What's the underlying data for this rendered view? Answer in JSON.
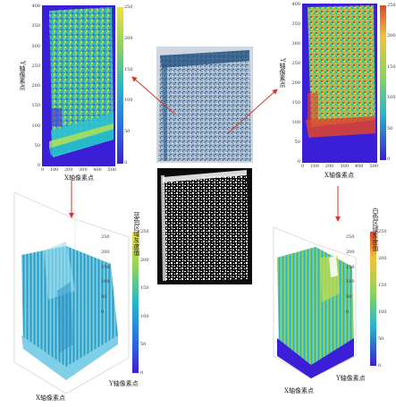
{
  "top_left_map": {
    "ylabel": "Y轴像素点",
    "xlabel": "X轴像素点",
    "x_ticks": [
      "0",
      "100",
      "200",
      "300",
      "400",
      "500"
    ],
    "y_ticks": [
      "400",
      "350",
      "300",
      "250",
      "200",
      "150",
      "100",
      "50",
      "0"
    ],
    "cbar_ticks": [
      "250",
      "200",
      "150",
      "100",
      "50",
      "0"
    ]
  },
  "top_right_map": {
    "ylabel": "Y轴像素点",
    "xlabel": "X轴像素点",
    "x_ticks": [
      "0",
      "100",
      "200",
      "300",
      "400",
      "500"
    ],
    "y_ticks": [
      "400",
      "350",
      "300",
      "250",
      "200",
      "150",
      "100",
      "50",
      "0"
    ],
    "cbar_ticks": [
      "250",
      "200",
      "150",
      "100",
      "50",
      "0"
    ]
  },
  "bottom_left_3d": {
    "title": "蓝色区域灰度值",
    "xlabel": "X轴像素点",
    "ylabel": "Y轴像素点",
    "z_ticks": [
      "250",
      "200",
      "150",
      "100",
      "50",
      "0"
    ],
    "cbar_ticks": [
      "250",
      "200",
      "150",
      "100",
      "50",
      "0"
    ]
  },
  "bottom_right_3d": {
    "title": "白色区域灰度值",
    "xlabel": "X轴像素点",
    "ylabel": "Y轴像素点",
    "z_ticks": [
      "250",
      "200",
      "150",
      "100",
      "50",
      "0"
    ],
    "cbar_ticks": [
      "250",
      "200",
      "150",
      "100",
      "50",
      "0"
    ]
  },
  "colors": {
    "arrow": "#d9342b",
    "low": "#3b1fd6",
    "mid": "#25b8c9",
    "high": "#f2e23a",
    "top": "#e0452b"
  }
}
